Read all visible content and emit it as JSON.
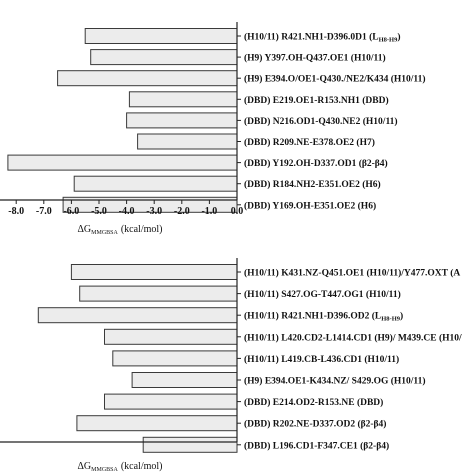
{
  "colors": {
    "bar_fill": "#ececec",
    "bar_stroke": "#3a3a3a",
    "axis": "#222222"
  },
  "chart_data": [
    {
      "type": "bar",
      "orientation": "horizontal",
      "xlim": [
        -8.4,
        0
      ],
      "x_ticks": [
        "-8.0",
        "-7.0",
        "-6.0",
        "-5.0",
        "-4.0",
        "-3.0",
        "-2.0",
        "-1.0",
        "0.0"
      ],
      "xlabel": {
        "main": "ΔG",
        "sub": "MMGBSA",
        "unit": "(kcal/mol)"
      },
      "categories": [
        {
          "label": "(H10/11) R421.NH1-D396.0D1 (L",
          "sub": "H8-H9",
          "end": ")"
        },
        {
          "label": "(H9) Y397.OH-Q437.OE1 (H10/11)"
        },
        {
          "label": "(H9) E394.O/OE1-Q430./NE2/K434 (H10/11)"
        },
        {
          "label": "(DBD) E219.OE1-R153.NH1 (DBD)"
        },
        {
          "label": "(DBD) N216.OD1-Q430.NE2 (H10/11)"
        },
        {
          "label": "(DBD) R209.NE-E378.OE2 (H7)"
        },
        {
          "label": "(DBD) Y192.OH-D337.OD1 (β2-β4)"
        },
        {
          "label": "(DBD) R184.NH2-E351.OE2 (H6)"
        },
        {
          "label": "(DBD) Y169.OH-E351.OE2 (H6)"
        }
      ],
      "values": [
        -5.5,
        -5.3,
        -6.5,
        -3.9,
        -4.0,
        -3.6,
        -8.3,
        -5.9,
        -6.3
      ]
    },
    {
      "type": "bar",
      "orientation": "horizontal",
      "xlim": [
        -8.4,
        0
      ],
      "x_ticks": [],
      "xlabel": {
        "main": "ΔG",
        "sub": "MMGBSA",
        "unit": "(kcal/mol)"
      },
      "categories": [
        {
          "label": "(H10/11) K431.NZ-Q451.OE1 (H10/11)/Y477.OXT (A"
        },
        {
          "label": "(H10/11) S427.OG-T447.OG1 (H10/11)"
        },
        {
          "label": "(H10/11) R421.NH1-D396.OD2 (L",
          "sub": "H8-H9",
          "end": ")"
        },
        {
          "label": "(H10/11) L420.CD2-L1414.CD1 (H9)/ M439.CE (H10/"
        },
        {
          "label": "(H10/11) L419.CB-L436.CD1 (H10/11)"
        },
        {
          "label": "(H9) E394.OE1-K434.NZ/ S429.OG (H10/11)"
        },
        {
          "label": "(DBD) E214.OD2-R153.NE (DBD)"
        },
        {
          "label": "(DBD) R202.NE-D337.OD2 (β2-β4)"
        },
        {
          "label": "(DBD) L196.CD1-F347.CE1 (β2-β4)"
        }
      ],
      "values": [
        -6.0,
        -5.7,
        -7.2,
        -4.8,
        -4.5,
        -3.8,
        -4.8,
        -5.8,
        -3.4
      ]
    }
  ]
}
